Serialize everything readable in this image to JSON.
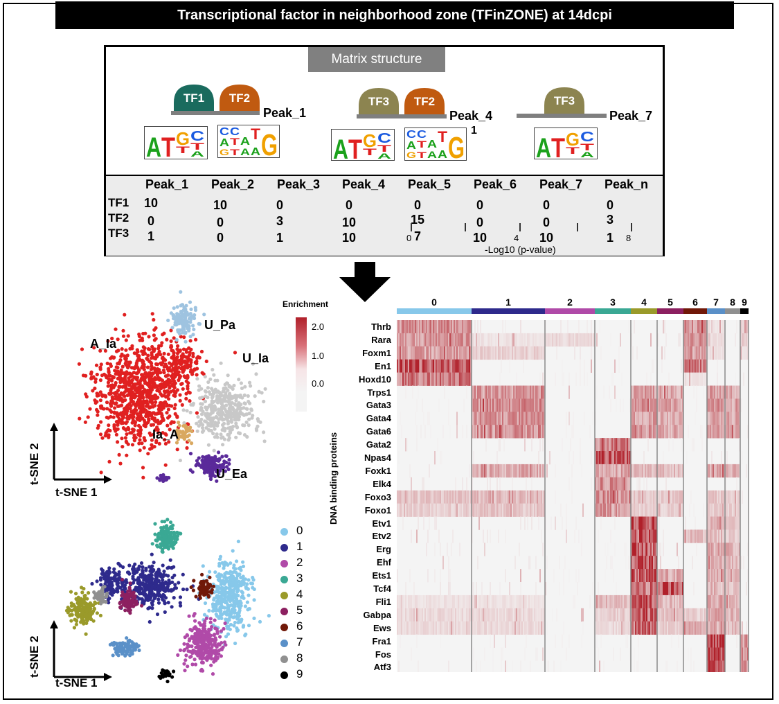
{
  "title": "Transcriptional factor in neighborhood zone (TFinZONE) at 14dcpi",
  "matrix": {
    "label": "Matrix structure",
    "groups": [
      {
        "peak": "Peak_1",
        "tfs": [
          {
            "name": "TF1",
            "color": "#1a6b5e"
          },
          {
            "name": "TF2",
            "color": "#c05a10"
          }
        ]
      },
      {
        "peak": "Peak_4",
        "tfs": [
          {
            "name": "TF3",
            "color": "#8c8450"
          },
          {
            "name": "TF2",
            "color": "#c05a10"
          }
        ]
      },
      {
        "peak": "Peak_7",
        "tfs": [
          {
            "name": "TF3",
            "color": "#8c8450"
          }
        ]
      }
    ],
    "stray_mark": "1",
    "columns": [
      "Peak_1",
      "Peak_2",
      "Peak_3",
      "Peak_4",
      "Peak_5",
      "Peak_6",
      "Peak_7",
      "Peak_n"
    ],
    "rows": [
      {
        "name": "TF1",
        "values": [
          "10",
          "10",
          "0",
          "0",
          "0",
          "0",
          "0",
          "0"
        ]
      },
      {
        "name": "TF2",
        "values": [
          "0",
          "0",
          "3",
          "10",
          "15",
          "0",
          "0",
          "3"
        ]
      },
      {
        "name": "TF3",
        "values": [
          "1",
          "0",
          "1",
          "10",
          "7",
          "10",
          "10",
          "1"
        ]
      }
    ],
    "scale_ticks": [
      "0",
      "4",
      "8"
    ],
    "scale_label": "-Log10 (p-value)"
  },
  "tsne_top": {
    "axis_x": "t-SNE 1",
    "axis_y": "t-SNE 2",
    "clusters": [
      {
        "name": "A_Ia",
        "color": "#e02020"
      },
      {
        "name": "U_Pa",
        "color": "#9ec3e0"
      },
      {
        "name": "U_Ia",
        "color": "#c8c8c8"
      },
      {
        "name": "Ia_A",
        "color": "#d9a860"
      },
      {
        "name": "U_Ea",
        "color": "#5a2a9a"
      }
    ]
  },
  "tsne_bottom": {
    "axis_x": "t-SNE 1",
    "axis_y": "t-SNE 2",
    "legend": [
      {
        "label": "0",
        "color": "#87c8ea"
      },
      {
        "label": "1",
        "color": "#2e2a8c"
      },
      {
        "label": "2",
        "color": "#b04aa8"
      },
      {
        "label": "3",
        "color": "#3aa894"
      },
      {
        "label": "4",
        "color": "#9a9a2a"
      },
      {
        "label": "5",
        "color": "#8c2060"
      },
      {
        "label": "6",
        "color": "#701808"
      },
      {
        "label": "7",
        "color": "#5a90c8"
      },
      {
        "label": "8",
        "color": "#909090"
      },
      {
        "label": "9",
        "color": "#000000"
      }
    ]
  },
  "heatmap": {
    "colorbar_title": "Enrichment",
    "colorbar_ticks": [
      "2.0",
      "1.0",
      "0.0"
    ],
    "ylabel": "DNA binding proteins",
    "clusters": [
      "0",
      "1",
      "2",
      "3",
      "4",
      "5",
      "6",
      "7",
      "8",
      "9"
    ],
    "cluster_widths": [
      108,
      106,
      72,
      52,
      38,
      38,
      34,
      26,
      22,
      12
    ],
    "genes": [
      "Thrb",
      "Rara",
      "Foxm1",
      "En1",
      "Hoxd10",
      "Trps1",
      "Gata3",
      "Gata4",
      "Gata6",
      "Gata2",
      "Npas4",
      "Foxk1",
      "Elk4",
      "Foxo3",
      "Foxo1",
      "Etv1",
      "Etv2",
      "Erg",
      "Ehf",
      "Ets1",
      "Tcf4",
      "Fli1",
      "Gabpa",
      "Ews",
      "Fra1",
      "Fos",
      "Atf3"
    ],
    "intensity": [
      [
        0.55,
        0.05,
        0.05,
        0.02,
        0.05,
        0.05,
        0.55,
        0.1,
        0.05,
        0.2
      ],
      [
        0.5,
        0.1,
        0.15,
        0.02,
        0.05,
        0.05,
        0.5,
        0.15,
        0.05,
        0.2
      ],
      [
        0.45,
        0.2,
        0.05,
        0.02,
        0.05,
        0.05,
        0.4,
        0.1,
        0.05,
        0.1
      ],
      [
        0.8,
        0.02,
        0.02,
        0.02,
        0.02,
        0.02,
        0.7,
        0.05,
        0.02,
        0.05
      ],
      [
        0.7,
        0.02,
        0.02,
        0.02,
        0.02,
        0.02,
        0.1,
        0.05,
        0.02,
        0.05
      ],
      [
        0.02,
        0.5,
        0.02,
        0.02,
        0.45,
        0.4,
        0.02,
        0.45,
        0.4,
        0.05
      ],
      [
        0.02,
        0.55,
        0.02,
        0.02,
        0.5,
        0.45,
        0.02,
        0.5,
        0.45,
        0.05
      ],
      [
        0.02,
        0.5,
        0.02,
        0.02,
        0.45,
        0.4,
        0.02,
        0.45,
        0.4,
        0.05
      ],
      [
        0.02,
        0.55,
        0.02,
        0.02,
        0.5,
        0.4,
        0.02,
        0.45,
        0.45,
        0.05
      ],
      [
        0.02,
        0.05,
        0.02,
        0.65,
        0.05,
        0.02,
        0.02,
        0.05,
        0.05,
        0.02
      ],
      [
        0.02,
        0.05,
        0.02,
        0.85,
        0.05,
        0.02,
        0.02,
        0.05,
        0.05,
        0.02
      ],
      [
        0.05,
        0.4,
        0.02,
        0.4,
        0.35,
        0.3,
        0.02,
        0.4,
        0.35,
        0.05
      ],
      [
        0.05,
        0.05,
        0.02,
        0.55,
        0.05,
        0.05,
        0.02,
        0.05,
        0.05,
        0.02
      ],
      [
        0.25,
        0.3,
        0.02,
        0.55,
        0.25,
        0.25,
        0.02,
        0.25,
        0.2,
        0.05
      ],
      [
        0.2,
        0.25,
        0.02,
        0.5,
        0.2,
        0.2,
        0.02,
        0.2,
        0.2,
        0.05
      ],
      [
        0.05,
        0.05,
        0.02,
        0.02,
        0.9,
        0.05,
        0.05,
        0.35,
        0.3,
        0.05
      ],
      [
        0.05,
        0.05,
        0.02,
        0.02,
        0.85,
        0.05,
        0.3,
        0.3,
        0.25,
        0.05
      ],
      [
        0.05,
        0.05,
        0.02,
        0.02,
        0.85,
        0.05,
        0.05,
        0.4,
        0.35,
        0.05
      ],
      [
        0.05,
        0.05,
        0.02,
        0.02,
        0.9,
        0.05,
        0.05,
        0.35,
        0.3,
        0.05
      ],
      [
        0.05,
        0.05,
        0.02,
        0.02,
        0.85,
        0.4,
        0.05,
        0.35,
        0.3,
        0.05
      ],
      [
        0.05,
        0.05,
        0.02,
        0.02,
        0.7,
        0.95,
        0.05,
        0.3,
        0.25,
        0.05
      ],
      [
        0.1,
        0.1,
        0.02,
        0.3,
        0.85,
        0.3,
        0.05,
        0.4,
        0.35,
        0.05
      ],
      [
        0.15,
        0.15,
        0.02,
        0.2,
        0.85,
        0.25,
        0.2,
        0.4,
        0.35,
        0.05
      ],
      [
        0.15,
        0.15,
        0.02,
        0.15,
        0.75,
        0.2,
        0.4,
        0.4,
        0.3,
        0.05
      ],
      [
        0.02,
        0.02,
        0.02,
        0.02,
        0.02,
        0.02,
        0.02,
        0.95,
        0.05,
        0.5
      ],
      [
        0.02,
        0.02,
        0.02,
        0.02,
        0.02,
        0.02,
        0.02,
        0.95,
        0.05,
        0.6
      ],
      [
        0.05,
        0.02,
        0.02,
        0.02,
        0.02,
        0.02,
        0.02,
        0.9,
        0.05,
        0.5
      ]
    ]
  }
}
